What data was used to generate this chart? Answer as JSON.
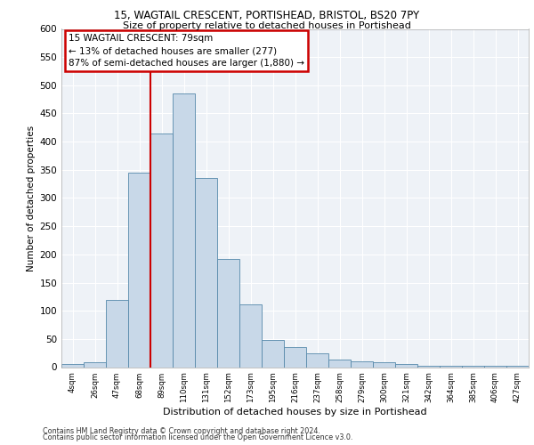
{
  "title_line1": "15, WAGTAIL CRESCENT, PORTISHEAD, BRISTOL, BS20 7PY",
  "title_line2": "Size of property relative to detached houses in Portishead",
  "xlabel": "Distribution of detached houses by size in Portishead",
  "ylabel": "Number of detached properties",
  "footer_line1": "Contains HM Land Registry data © Crown copyright and database right 2024.",
  "footer_line2": "Contains public sector information licensed under the Open Government Licence v3.0.",
  "annotation_line1": "15 WAGTAIL CRESCENT: 79sqm",
  "annotation_line2": "← 13% of detached houses are smaller (277)",
  "annotation_line3": "87% of semi-detached houses are larger (1,880) →",
  "bar_labels": [
    "4sqm",
    "26sqm",
    "47sqm",
    "68sqm",
    "89sqm",
    "110sqm",
    "131sqm",
    "152sqm",
    "173sqm",
    "195sqm",
    "216sqm",
    "237sqm",
    "258sqm",
    "279sqm",
    "300sqm",
    "321sqm",
    "342sqm",
    "364sqm",
    "385sqm",
    "406sqm",
    "427sqm"
  ],
  "bar_values": [
    5,
    8,
    120,
    345,
    415,
    485,
    335,
    192,
    112,
    48,
    35,
    25,
    14,
    10,
    8,
    5,
    3,
    2,
    2,
    3,
    2
  ],
  "bar_color": "#c8d8e8",
  "bar_edge_color": "#5588aa",
  "vline_color": "#cc0000",
  "ylim": [
    0,
    600
  ],
  "yticks": [
    0,
    50,
    100,
    150,
    200,
    250,
    300,
    350,
    400,
    450,
    500,
    550,
    600
  ],
  "annotation_box_color": "#cc0000",
  "annotation_box_facecolor": "white",
  "background_color": "#eef2f7",
  "grid_color": "white"
}
